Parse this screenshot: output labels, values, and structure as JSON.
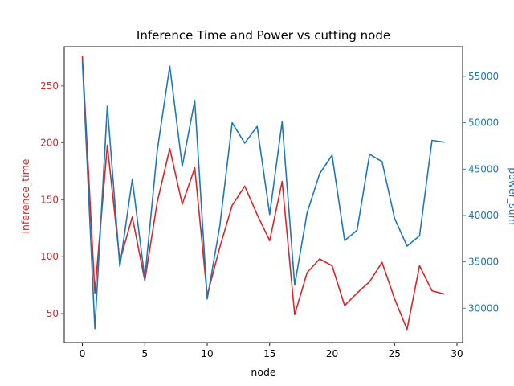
{
  "chart_data": {
    "type": "line",
    "title": "Inference Time and Power vs cutting node",
    "xlabel": "node",
    "x": [
      0,
      1,
      2,
      3,
      4,
      5,
      6,
      7,
      8,
      9,
      10,
      11,
      12,
      13,
      14,
      15,
      16,
      17,
      18,
      19,
      20,
      21,
      22,
      23,
      24,
      25,
      26,
      27,
      28,
      29
    ],
    "xlim": [
      -1.45,
      30.45
    ],
    "xticks": [
      0,
      5,
      10,
      15,
      20,
      25,
      30
    ],
    "left_axis": {
      "label": "inference_time",
      "color": "#d62728",
      "ylim": [
        24.5,
        284.5
      ],
      "ticks": [
        50,
        100,
        150,
        200,
        250
      ]
    },
    "right_axis": {
      "label": "power_sum",
      "color": "#1f77b4",
      "ylim": [
        26300,
        58200
      ],
      "ticks": [
        30000,
        35000,
        40000,
        45000,
        50000,
        55000
      ]
    },
    "series": [
      {
        "axis": "left",
        "color": "#d62728",
        "values": [
          276,
          68,
          198,
          96,
          135,
          79,
          148,
          195,
          146,
          178,
          66,
          108,
          145,
          162,
          137,
          114,
          166,
          49,
          86,
          98,
          92,
          57,
          68,
          78,
          95,
          63,
          36,
          92,
          70,
          67
        ]
      },
      {
        "axis": "right",
        "color": "#1f77b4",
        "values": [
          56700,
          27800,
          51800,
          34500,
          43900,
          33200,
          47000,
          56100,
          45300,
          52400,
          31000,
          38800,
          50000,
          47800,
          49600,
          40100,
          50100,
          32500,
          40300,
          44500,
          46500,
          37300,
          38400,
          46600,
          45800,
          39700,
          36700,
          37800,
          48100,
          47900
        ]
      }
    ]
  }
}
